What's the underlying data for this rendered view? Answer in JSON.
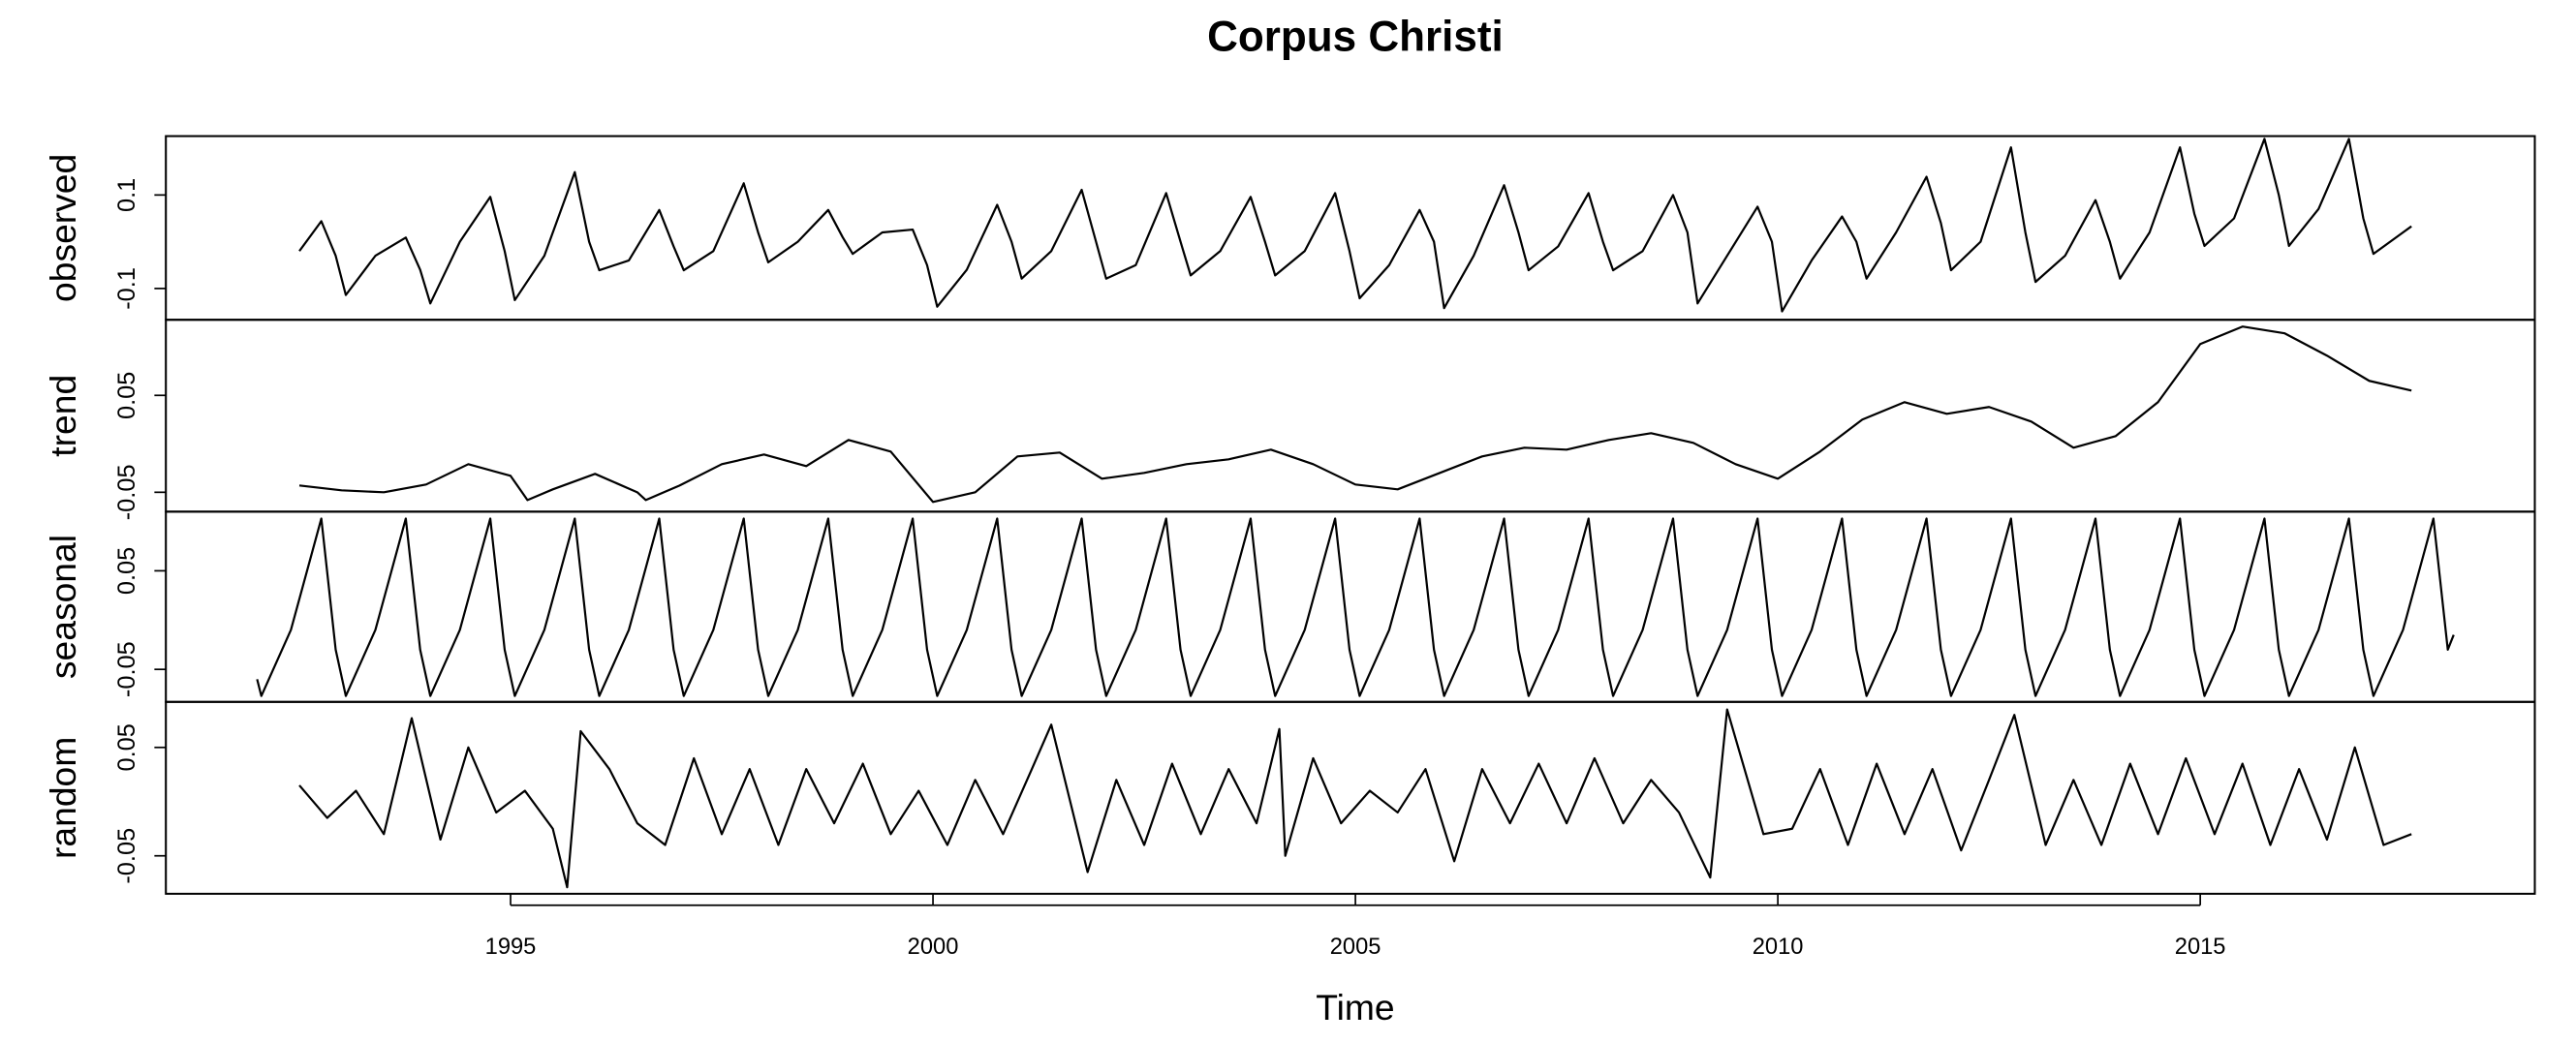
{
  "chart_data": [
    {
      "type": "line",
      "title": "Corpus Christi",
      "ylabel": "observed",
      "color": "#000000",
      "xlim": [
        1990.92,
        2018.96
      ],
      "ylim": [
        -0.167,
        0.226
      ],
      "yticks": [
        -0.1,
        0.1
      ],
      "x": [
        1992.5,
        1992.76,
        1992.93,
        1993.05,
        1993.4,
        1993.76,
        1993.93,
        1994.05,
        1994.4,
        1994.76,
        1994.93,
        1995.05,
        1995.4,
        1995.76,
        1995.93,
        1996.05,
        1996.4,
        1996.76,
        1996.93,
        1997.05,
        1997.4,
        1997.76,
        1997.93,
        1998.05,
        1998.4,
        1998.76,
        1998.93,
        1999.05,
        1999.4,
        1999.76,
        1999.93,
        2000.05,
        2000.4,
        2000.76,
        2000.93,
        2001.05,
        2001.4,
        2001.76,
        2001.93,
        2002.05,
        2002.4,
        2002.76,
        2002.93,
        2003.05,
        2003.4,
        2003.76,
        2003.93,
        2004.05,
        2004.4,
        2004.76,
        2004.93,
        2005.05,
        2005.4,
        2005.76,
        2005.93,
        2006.05,
        2006.4,
        2006.76,
        2006.93,
        2007.05,
        2007.4,
        2007.76,
        2007.93,
        2008.05,
        2008.4,
        2008.76,
        2008.93,
        2009.05,
        2009.4,
        2009.76,
        2009.93,
        2010.05,
        2010.4,
        2010.76,
        2010.93,
        2011.05,
        2011.4,
        2011.76,
        2011.93,
        2012.05,
        2012.4,
        2012.76,
        2012.93,
        2013.05,
        2013.4,
        2013.76,
        2013.93,
        2014.05,
        2014.4,
        2014.76,
        2014.93,
        2015.05,
        2015.4,
        2015.76,
        2015.93,
        2016.05,
        2016.4,
        2016.76,
        2016.93,
        2017.05,
        2017.4,
        2017.5
      ],
      "values": [
        -0.02,
        0.044,
        -0.03,
        -0.114,
        -0.03,
        0.009,
        -0.06,
        -0.132,
        0.0,
        0.096,
        -0.02,
        -0.125,
        -0.03,
        0.149,
        0.0,
        -0.061,
        -0.04,
        0.068,
        -0.01,
        -0.061,
        -0.02,
        0.125,
        0.02,
        -0.044,
        0.0,
        0.068,
        0.01,
        -0.026,
        0.02,
        0.026,
        -0.05,
        -0.139,
        -0.06,
        0.079,
        0.0,
        -0.079,
        -0.02,
        0.111,
        0.0,
        -0.079,
        -0.05,
        0.104,
        0.0,
        -0.072,
        -0.02,
        0.096,
        0.0,
        -0.072,
        -0.02,
        0.104,
        -0.02,
        -0.121,
        -0.05,
        0.068,
        0.0,
        -0.142,
        -0.03,
        0.121,
        0.02,
        -0.061,
        -0.01,
        0.104,
        0.0,
        -0.061,
        -0.02,
        0.1,
        0.02,
        -0.132,
        -0.03,
        0.075,
        0.0,
        -0.149,
        -0.04,
        0.054,
        0.0,
        -0.079,
        0.02,
        0.139,
        0.04,
        -0.061,
        0.0,
        0.202,
        0.02,
        -0.086,
        -0.03,
        0.089,
        0.0,
        -0.079,
        0.02,
        0.202,
        0.06,
        -0.009,
        0.05,
        0.22,
        0.1,
        -0.009,
        0.07,
        0.22,
        0.05,
        -0.026,
        0.02,
        0.033
      ]
    },
    {
      "type": "line",
      "ylabel": "trend",
      "color": "#000000",
      "xlim": [
        1990.92,
        2018.96
      ],
      "ylim": [
        -0.07,
        0.128
      ],
      "yticks": [
        -0.05,
        0.05
      ],
      "x": [
        1992.5,
        1993.0,
        1993.5,
        1994.0,
        1994.5,
        1995.0,
        1995.2,
        1995.5,
        1996.0,
        1996.5,
        1996.6,
        1997.0,
        1997.5,
        1998.0,
        1998.5,
        1999.0,
        1999.5,
        2000.0,
        2000.5,
        2001.0,
        2001.5,
        2002.0,
        2002.5,
        2003.0,
        2003.5,
        2004.0,
        2004.5,
        2005.0,
        2005.5,
        2006.0,
        2006.5,
        2007.0,
        2007.5,
        2008.0,
        2008.5,
        2009.0,
        2009.5,
        2010.0,
        2010.5,
        2011.0,
        2011.5,
        2012.0,
        2012.5,
        2013.0,
        2013.5,
        2014.0,
        2014.5,
        2015.0,
        2015.5,
        2016.0,
        2016.5,
        2017.0,
        2017.5
      ],
      "values": [
        -0.043,
        -0.048,
        -0.05,
        -0.042,
        -0.021,
        -0.033,
        -0.058,
        -0.047,
        -0.031,
        -0.05,
        -0.058,
        -0.043,
        -0.021,
        -0.011,
        -0.023,
        0.004,
        -0.008,
        -0.06,
        -0.05,
        -0.013,
        -0.009,
        -0.036,
        -0.03,
        -0.021,
        -0.016,
        -0.006,
        -0.021,
        -0.042,
        -0.047,
        -0.03,
        -0.013,
        -0.004,
        -0.006,
        0.004,
        0.011,
        0.001,
        -0.021,
        -0.036,
        -0.008,
        0.025,
        0.043,
        0.031,
        0.038,
        0.023,
        -0.004,
        0.008,
        0.043,
        0.103,
        0.121,
        0.114,
        0.091,
        0.065,
        0.055
      ]
    },
    {
      "type": "line",
      "ylabel": "seasonal",
      "color": "#000000",
      "xlim": [
        1990.92,
        2018.96
      ],
      "ylim": [
        -0.083,
        0.11
      ],
      "yticks": [
        -0.05,
        0.05
      ],
      "x": [
        1992.0,
        1992.05,
        1992.4,
        1992.76,
        1992.93,
        1993.05,
        1993.4,
        1993.76,
        1993.93,
        1994.05,
        1994.4,
        1994.76,
        1994.93,
        1995.05,
        1995.4,
        1995.76,
        1995.93,
        1996.05,
        1996.4,
        1996.76,
        1996.93,
        1997.05,
        1997.4,
        1997.76,
        1997.93,
        1998.05,
        1998.4,
        1998.76,
        1998.93,
        1999.05,
        1999.4,
        1999.76,
        1999.93,
        2000.05,
        2000.4,
        2000.76,
        2000.93,
        2001.05,
        2001.4,
        2001.76,
        2001.93,
        2002.05,
        2002.4,
        2002.76,
        2002.93,
        2003.05,
        2003.4,
        2003.76,
        2003.93,
        2004.05,
        2004.4,
        2004.76,
        2004.93,
        2005.05,
        2005.4,
        2005.76,
        2005.93,
        2006.05,
        2006.4,
        2006.76,
        2006.93,
        2007.05,
        2007.4,
        2007.76,
        2007.93,
        2008.05,
        2008.4,
        2008.76,
        2008.93,
        2009.05,
        2009.4,
        2009.76,
        2009.93,
        2010.05,
        2010.4,
        2010.76,
        2010.93,
        2011.05,
        2011.4,
        2011.76,
        2011.93,
        2012.05,
        2012.4,
        2012.76,
        2012.93,
        2013.05,
        2013.4,
        2013.76,
        2013.93,
        2014.05,
        2014.4,
        2014.76,
        2014.93,
        2015.05,
        2015.4,
        2015.76,
        2015.93,
        2016.05,
        2016.4,
        2016.76,
        2016.93,
        2017.05,
        2017.4,
        2017.76,
        2017.93,
        2018.0
      ],
      "values": [
        -0.06,
        -0.077,
        -0.01,
        0.103,
        -0.03,
        -0.077,
        -0.01,
        0.103,
        -0.03,
        -0.077,
        -0.01,
        0.103,
        -0.03,
        -0.077,
        -0.01,
        0.103,
        -0.03,
        -0.077,
        -0.01,
        0.103,
        -0.03,
        -0.077,
        -0.01,
        0.103,
        -0.03,
        -0.077,
        -0.01,
        0.103,
        -0.03,
        -0.077,
        -0.01,
        0.103,
        -0.03,
        -0.077,
        -0.01,
        0.103,
        -0.03,
        -0.077,
        -0.01,
        0.103,
        -0.03,
        -0.077,
        -0.01,
        0.103,
        -0.03,
        -0.077,
        -0.01,
        0.103,
        -0.03,
        -0.077,
        -0.01,
        0.103,
        -0.03,
        -0.077,
        -0.01,
        0.103,
        -0.03,
        -0.077,
        -0.01,
        0.103,
        -0.03,
        -0.077,
        -0.01,
        0.103,
        -0.03,
        -0.077,
        -0.01,
        0.103,
        -0.03,
        -0.077,
        -0.01,
        0.103,
        -0.03,
        -0.077,
        -0.01,
        0.103,
        -0.03,
        -0.077,
        -0.01,
        0.103,
        -0.03,
        -0.077,
        -0.01,
        0.103,
        -0.03,
        -0.077,
        -0.01,
        0.103,
        -0.03,
        -0.077,
        -0.01,
        0.103,
        -0.03,
        -0.077,
        -0.01,
        0.103,
        -0.03,
        -0.077,
        -0.01,
        0.103,
        -0.03,
        -0.077,
        -0.01,
        0.103,
        -0.03,
        -0.015
      ]
    },
    {
      "type": "line",
      "ylabel": "random",
      "xlabel": "Time",
      "color": "#000000",
      "xlim": [
        1990.92,
        2018.96
      ],
      "ylim": [
        -0.085,
        0.092
      ],
      "yticks": [
        -0.05,
        0.05
      ],
      "xticks": [
        1995,
        2000,
        2005,
        2010,
        2015
      ],
      "x": [
        1992.5,
        1992.83,
        1993.17,
        1993.5,
        1993.83,
        1994.17,
        1994.5,
        1994.83,
        1995.17,
        1995.5,
        1995.67,
        1995.83,
        1996.17,
        1996.5,
        1996.83,
        1997.17,
        1997.5,
        1997.83,
        1998.17,
        1998.5,
        1998.83,
        1999.17,
        1999.5,
        1999.83,
        2000.17,
        2000.5,
        2000.83,
        2001.17,
        2001.4,
        2001.83,
        2002.17,
        2002.5,
        2002.83,
        2003.17,
        2003.5,
        2003.83,
        2004.1,
        2004.17,
        2004.5,
        2004.83,
        2005.17,
        2005.5,
        2005.83,
        2006.17,
        2006.5,
        2006.83,
        2007.17,
        2007.5,
        2007.83,
        2008.17,
        2008.5,
        2008.83,
        2009.2,
        2009.4,
        2009.83,
        2010.17,
        2010.5,
        2010.83,
        2011.17,
        2011.5,
        2011.83,
        2012.17,
        2012.5,
        2012.8,
        2013.17,
        2013.5,
        2013.83,
        2014.17,
        2014.5,
        2014.83,
        2015.17,
        2015.5,
        2015.83,
        2016.17,
        2016.5,
        2016.83,
        2017.17,
        2017.5
      ],
      "values": [
        0.015,
        -0.015,
        0.01,
        -0.03,
        0.077,
        -0.035,
        0.05,
        -0.01,
        0.01,
        -0.025,
        -0.079,
        0.065,
        0.03,
        -0.02,
        -0.04,
        0.04,
        -0.03,
        0.03,
        -0.04,
        0.03,
        -0.02,
        0.035,
        -0.03,
        0.01,
        -0.04,
        0.02,
        -0.03,
        0.03,
        0.071,
        -0.065,
        0.02,
        -0.04,
        0.035,
        -0.03,
        0.03,
        -0.02,
        0.067,
        -0.05,
        0.04,
        -0.02,
        0.01,
        -0.01,
        0.03,
        -0.055,
        0.03,
        -0.02,
        0.035,
        -0.02,
        0.04,
        -0.02,
        0.02,
        -0.01,
        -0.07,
        0.085,
        -0.03,
        -0.025,
        0.03,
        -0.04,
        0.035,
        -0.03,
        0.03,
        -0.045,
        0.02,
        0.08,
        -0.04,
        0.02,
        -0.04,
        0.035,
        -0.03,
        0.04,
        -0.03,
        0.035,
        -0.04,
        0.03,
        -0.035,
        0.05,
        -0.04,
        -0.03
      ]
    }
  ]
}
